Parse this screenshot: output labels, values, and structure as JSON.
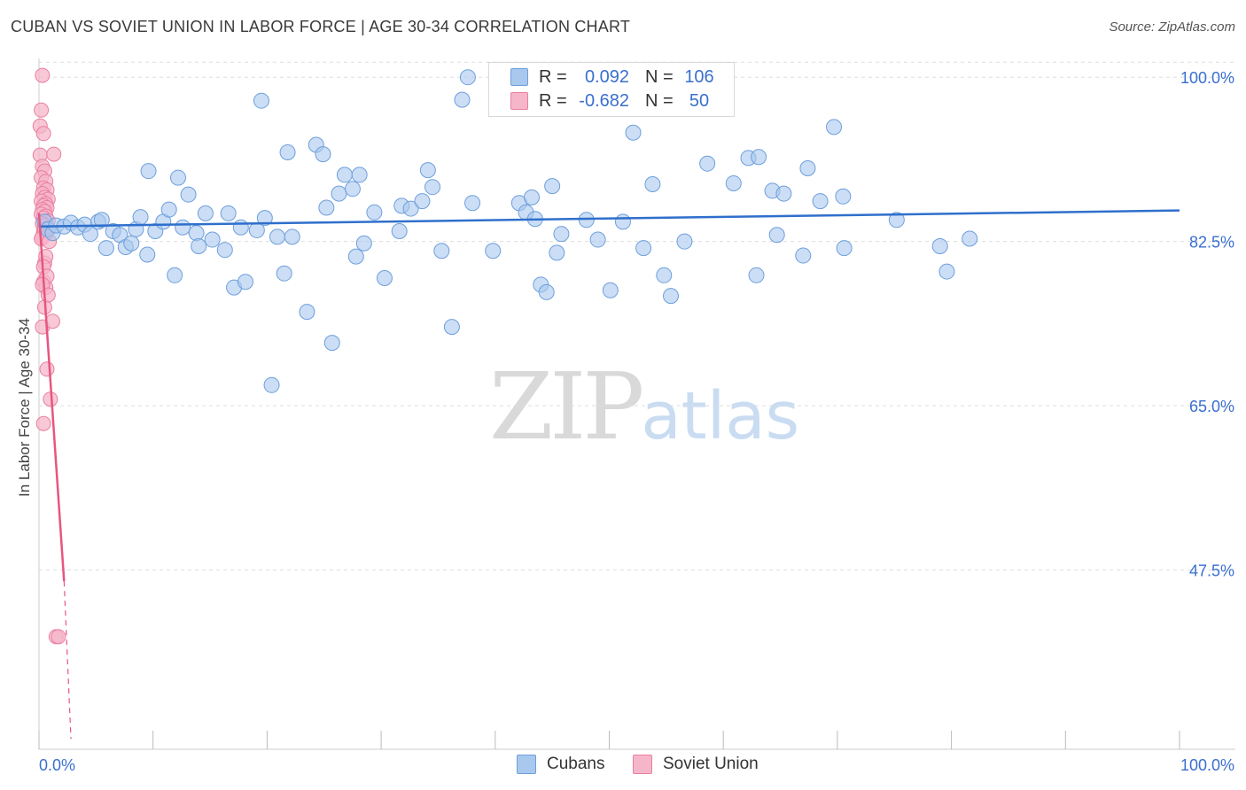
{
  "title": "CUBAN VS SOVIET UNION IN LABOR FORCE | AGE 30-34 CORRELATION CHART",
  "source": "Source: ZipAtlas.com",
  "watermark": {
    "zip": "ZIP",
    "atlas": "atlas"
  },
  "legend": {
    "series1": {
      "r_label": "R =",
      "r_value": "0.092",
      "n_label": "N =",
      "n_value": "106"
    },
    "series2": {
      "r_label": "R =",
      "r_value": "-0.682",
      "n_label": "N =",
      "n_value": "50"
    }
  },
  "bottom_legend": {
    "cubans": "Cubans",
    "soviet": "Soviet Union"
  },
  "colors": {
    "cuban_fill": "#a9c8ee",
    "cuban_stroke": "#6e9fdc",
    "cuban_line": "#2f6fcc",
    "soviet_fill": "#f6b6c9",
    "soviet_stroke": "#e97fa0",
    "soviet_line": "#e8557f",
    "grid": "#dddddd",
    "tick_text": "#3a6fcf"
  },
  "chart_data": {
    "type": "scatter",
    "title": "CUBAN VS SOVIET UNION IN LABOR FORCE | AGE 30-34 CORRELATION CHART",
    "xlabel": "",
    "ylabel": "In Labor Force | Age 30-34",
    "xlim": [
      0,
      100
    ],
    "ylim": [
      28.4,
      102.0
    ],
    "x_tick_labels": {
      "left": "0.0%",
      "right": "100.0%"
    },
    "y_ticks": [
      {
        "value": 100.0,
        "label": "100.0%"
      },
      {
        "value": 82.5,
        "label": "82.5%"
      },
      {
        "value": 65.0,
        "label": "65.0%"
      },
      {
        "value": 47.5,
        "label": "47.5%"
      }
    ],
    "grid": true,
    "series": [
      {
        "name": "Cubans",
        "r": 0.092,
        "n": 106,
        "trend": {
          "x": [
            0,
            100
          ],
          "y": [
            84.1,
            85.8
          ]
        },
        "points": [
          [
            0.5,
            84.6
          ],
          [
            0.8,
            83.8
          ],
          [
            1.2,
            83.4
          ],
          [
            1.5,
            84.2
          ],
          [
            2.2,
            84.1
          ],
          [
            2.8,
            84.5
          ],
          [
            3.4,
            84.0
          ],
          [
            4.0,
            84.3
          ],
          [
            4.5,
            83.3
          ],
          [
            5.2,
            84.6
          ],
          [
            5.5,
            84.8
          ],
          [
            5.9,
            81.8
          ],
          [
            6.5,
            83.6
          ],
          [
            7.1,
            83.2
          ],
          [
            7.6,
            81.9
          ],
          [
            8.1,
            82.3
          ],
          [
            8.5,
            83.8
          ],
          [
            8.9,
            85.1
          ],
          [
            9.5,
            81.1
          ],
          [
            9.6,
            90.0
          ],
          [
            10.2,
            83.6
          ],
          [
            10.9,
            84.6
          ],
          [
            11.4,
            85.9
          ],
          [
            11.9,
            78.9
          ],
          [
            12.2,
            89.3
          ],
          [
            12.6,
            84.0
          ],
          [
            13.1,
            87.5
          ],
          [
            13.8,
            83.4
          ],
          [
            14.0,
            82.0
          ],
          [
            14.6,
            85.5
          ],
          [
            15.2,
            82.7
          ],
          [
            16.3,
            81.6
          ],
          [
            16.6,
            85.5
          ],
          [
            17.1,
            77.6
          ],
          [
            17.7,
            84.0
          ],
          [
            18.1,
            78.2
          ],
          [
            19.1,
            83.7
          ],
          [
            19.5,
            97.5
          ],
          [
            19.8,
            85.0
          ],
          [
            20.4,
            67.2
          ],
          [
            20.9,
            83.0
          ],
          [
            21.5,
            79.1
          ],
          [
            21.8,
            92.0
          ],
          [
            22.2,
            83.0
          ],
          [
            23.5,
            75.0
          ],
          [
            24.3,
            92.8
          ],
          [
            24.9,
            91.8
          ],
          [
            25.2,
            86.1
          ],
          [
            25.7,
            71.7
          ],
          [
            26.3,
            87.6
          ],
          [
            26.8,
            89.6
          ],
          [
            27.5,
            88.1
          ],
          [
            27.8,
            80.9
          ],
          [
            28.1,
            89.6
          ],
          [
            28.5,
            82.3
          ],
          [
            29.4,
            85.6
          ],
          [
            30.3,
            78.6
          ],
          [
            31.6,
            83.6
          ],
          [
            31.8,
            86.3
          ],
          [
            32.6,
            86.0
          ],
          [
            33.6,
            86.8
          ],
          [
            34.1,
            90.1
          ],
          [
            34.5,
            88.3
          ],
          [
            35.3,
            81.5
          ],
          [
            36.2,
            73.4
          ],
          [
            37.1,
            97.6
          ],
          [
            37.6,
            100.0
          ],
          [
            38.0,
            86.6
          ],
          [
            39.8,
            81.5
          ],
          [
            42.1,
            86.6
          ],
          [
            42.7,
            85.6
          ],
          [
            43.2,
            87.2
          ],
          [
            43.5,
            84.9
          ],
          [
            44.0,
            77.9
          ],
          [
            44.5,
            77.1
          ],
          [
            45.0,
            88.4
          ],
          [
            45.4,
            81.3
          ],
          [
            45.8,
            83.3
          ],
          [
            48.0,
            84.8
          ],
          [
            49.0,
            82.7
          ],
          [
            50.1,
            77.3
          ],
          [
            51.2,
            84.6
          ],
          [
            52.1,
            94.1
          ],
          [
            53.0,
            81.8
          ],
          [
            53.8,
            88.6
          ],
          [
            54.8,
            78.9
          ],
          [
            55.4,
            76.7
          ],
          [
            56.6,
            82.5
          ],
          [
            58.6,
            90.8
          ],
          [
            60.9,
            88.7
          ],
          [
            62.2,
            91.4
          ],
          [
            62.9,
            78.9
          ],
          [
            63.1,
            91.5
          ],
          [
            64.3,
            87.9
          ],
          [
            64.7,
            83.2
          ],
          [
            65.3,
            87.6
          ],
          [
            67.0,
            81.0
          ],
          [
            67.4,
            90.3
          ],
          [
            68.5,
            86.8
          ],
          [
            69.7,
            94.7
          ],
          [
            70.5,
            87.3
          ],
          [
            70.6,
            81.8
          ],
          [
            75.2,
            84.8
          ],
          [
            79.0,
            82.0
          ],
          [
            79.6,
            79.3
          ],
          [
            81.6,
            82.8
          ]
        ]
      },
      {
        "name": "Soviet Union",
        "r": -0.682,
        "n": 50,
        "trend": {
          "x": [
            0,
            2.2
          ],
          "y": [
            85.5,
            46.3
          ],
          "dashed_to": {
            "x": 2.8,
            "y": 29.5
          }
        },
        "points": [
          [
            0.1,
            94.8
          ],
          [
            0.2,
            96.5
          ],
          [
            0.3,
            100.2
          ],
          [
            0.4,
            94.0
          ],
          [
            0.1,
            91.7
          ],
          [
            0.3,
            90.5
          ],
          [
            0.5,
            90.0
          ],
          [
            0.2,
            89.3
          ],
          [
            0.6,
            88.9
          ],
          [
            0.4,
            88.2
          ],
          [
            0.7,
            88.0
          ],
          [
            0.3,
            87.6
          ],
          [
            0.5,
            87.2
          ],
          [
            0.8,
            87.0
          ],
          [
            0.2,
            86.8
          ],
          [
            0.6,
            86.5
          ],
          [
            0.4,
            86.3
          ],
          [
            0.7,
            86.1
          ],
          [
            0.3,
            85.9
          ],
          [
            0.5,
            85.7
          ],
          [
            0.2,
            85.4
          ],
          [
            0.6,
            85.2
          ],
          [
            0.4,
            85.0
          ],
          [
            0.8,
            84.7
          ],
          [
            0.3,
            84.4
          ],
          [
            0.5,
            84.2
          ],
          [
            0.7,
            83.9
          ],
          [
            0.4,
            83.6
          ],
          [
            0.6,
            83.3
          ],
          [
            0.3,
            83.0
          ],
          [
            1.3,
            91.8
          ],
          [
            0.5,
            80.2
          ],
          [
            0.4,
            78.2
          ],
          [
            0.6,
            77.6
          ],
          [
            0.5,
            75.5
          ],
          [
            0.3,
            73.4
          ],
          [
            1.2,
            74.0
          ],
          [
            0.7,
            68.9
          ],
          [
            1.0,
            65.7
          ],
          [
            0.4,
            63.1
          ],
          [
            1.5,
            40.4
          ],
          [
            1.7,
            40.4
          ],
          [
            0.5,
            83.8
          ],
          [
            0.2,
            82.8
          ],
          [
            0.9,
            82.5
          ],
          [
            0.6,
            80.9
          ],
          [
            0.4,
            79.8
          ],
          [
            0.7,
            78.8
          ],
          [
            0.3,
            77.9
          ],
          [
            0.8,
            76.8
          ]
        ]
      }
    ]
  }
}
